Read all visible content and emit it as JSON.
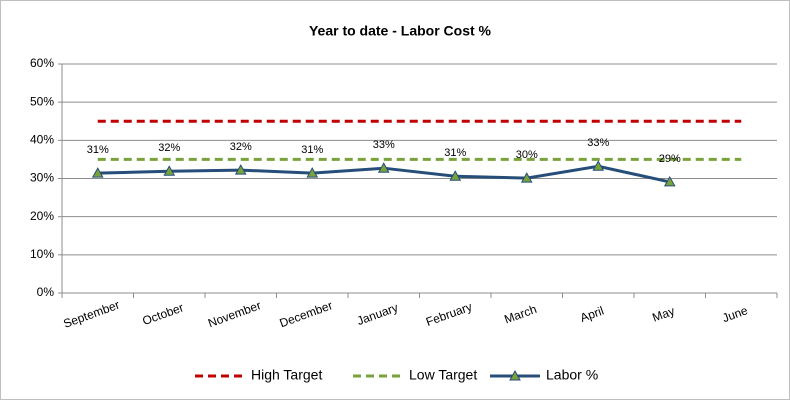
{
  "chart_data": {
    "type": "line",
    "title": "Year to date - Labor Cost  %",
    "categories": [
      "September",
      "October",
      "November",
      "December",
      "January",
      "February",
      "March",
      "April",
      "May",
      "June"
    ],
    "series": [
      {
        "name": "High Target",
        "color": "#c00000",
        "dashed": true,
        "values": [
          45,
          45,
          45,
          45,
          45,
          45,
          45,
          45,
          45,
          45
        ]
      },
      {
        "name": "Low Target",
        "color": "#77a33a",
        "dashed": true,
        "values": [
          35,
          35,
          35,
          35,
          35,
          35,
          35,
          35,
          35,
          35
        ]
      },
      {
        "name": "Labor %",
        "color": "#264e79",
        "marker": "triangle",
        "marker_color": "#77a33a",
        "values": [
          31.4,
          31.9,
          32.2,
          31.4,
          32.7,
          30.6,
          30.1,
          33.2,
          29.1,
          null
        ],
        "value_labels": [
          "31%",
          "32%",
          "32%",
          "31%",
          "33%",
          "31%",
          "30%",
          "33%",
          "29%",
          null
        ]
      }
    ],
    "ylim": [
      0,
      60
    ],
    "yticks": [
      {
        "value": 0,
        "label": "0%"
      },
      {
        "value": 10,
        "label": "10%"
      },
      {
        "value": 20,
        "label": "20%"
      },
      {
        "value": 30,
        "label": "30%"
      },
      {
        "value": 40,
        "label": "40%"
      },
      {
        "value": 50,
        "label": "50%"
      },
      {
        "value": 60,
        "label": "60%"
      }
    ],
    "grid": true,
    "legend": "bottom"
  }
}
